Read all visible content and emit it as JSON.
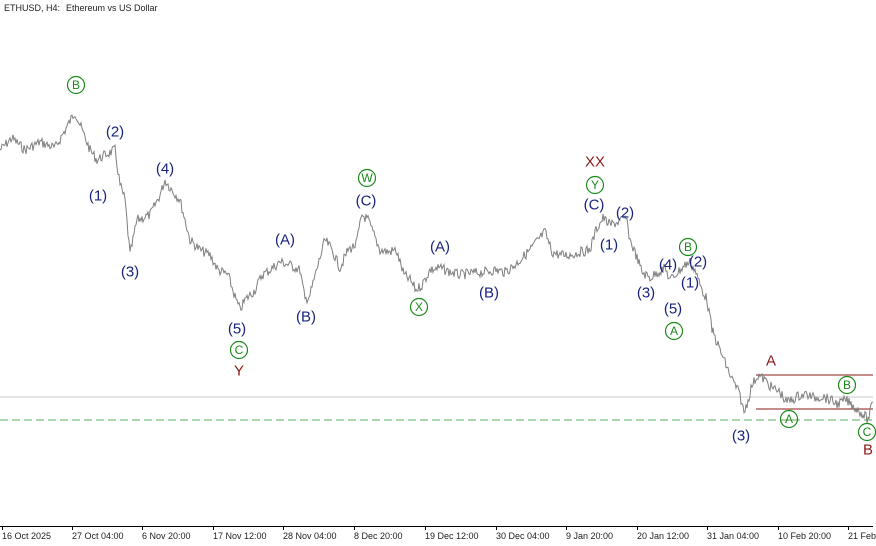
{
  "header": {
    "symbol_timeframe": "ETHUSD, H4:",
    "description": "Ethereum vs US Dollar"
  },
  "time_axis": {
    "labels": [
      "16 Oct 2025",
      "27 Oct 04:00",
      "6 Nov 20:00",
      "17 Nov 12:00",
      "28 Nov 04:00",
      "8 Dec 20:00",
      "19 Dec 12:00",
      "30 Dec 04:00",
      "9 Jan 20:00",
      "20 Jan 12:00",
      "31 Jan 04:00",
      "10 Feb 20:00",
      "21 Feb"
    ]
  },
  "colors": {
    "price_line": "#7f7f7f",
    "navy_label": "#1a237e",
    "green_label": "#1b8a1b",
    "red_label": "#8b1a1a",
    "support_line": "#7fbf7f",
    "reference_line": "#c8c8c8",
    "channel_line": "#8b1a1a"
  },
  "wave_labels": [
    {
      "text": "B",
      "color": "green",
      "circled": true
    },
    {
      "text": "(2)",
      "color": "navy",
      "circled": false
    },
    {
      "text": "(1)",
      "color": "navy",
      "circled": false
    },
    {
      "text": "(4)",
      "color": "navy",
      "circled": false
    },
    {
      "text": "(3)",
      "color": "navy",
      "circled": false
    },
    {
      "text": "(5)",
      "color": "navy",
      "circled": false
    },
    {
      "text": "C",
      "color": "green",
      "circled": true
    },
    {
      "text": "Y",
      "color": "red",
      "circled": false
    },
    {
      "text": "(A)",
      "color": "navy",
      "circled": false
    },
    {
      "text": "(B)",
      "color": "navy",
      "circled": false
    },
    {
      "text": "W",
      "color": "green",
      "circled": true
    },
    {
      "text": "(C)",
      "color": "navy",
      "circled": false
    },
    {
      "text": "X",
      "color": "green",
      "circled": true
    },
    {
      "text": "(A)",
      "color": "navy",
      "circled": false
    },
    {
      "text": "(B)",
      "color": "navy",
      "circled": false
    },
    {
      "text": "XX",
      "color": "red",
      "circled": false
    },
    {
      "text": "Y",
      "color": "green",
      "circled": true
    },
    {
      "text": "(C)",
      "color": "navy",
      "circled": false
    },
    {
      "text": "(2)",
      "color": "navy",
      "circled": false
    },
    {
      "text": "(1)",
      "color": "navy",
      "circled": false
    },
    {
      "text": "B",
      "color": "green",
      "circled": true
    },
    {
      "text": "(4)",
      "color": "navy",
      "circled": false
    },
    {
      "text": "(2)",
      "color": "navy",
      "circled": false
    },
    {
      "text": "(3)",
      "color": "navy",
      "circled": false
    },
    {
      "text": "(1)",
      "color": "navy",
      "circled": false
    },
    {
      "text": "(5)",
      "color": "navy",
      "circled": false
    },
    {
      "text": "A",
      "color": "green",
      "circled": true
    },
    {
      "text": "A",
      "color": "red",
      "circled": false
    },
    {
      "text": "B",
      "color": "green",
      "circled": true
    },
    {
      "text": "A",
      "color": "green",
      "circled": true
    },
    {
      "text": "(3)",
      "color": "navy",
      "circled": false
    },
    {
      "text": "C",
      "color": "green",
      "circled": true
    },
    {
      "text": "B",
      "color": "red",
      "circled": false
    }
  ]
}
